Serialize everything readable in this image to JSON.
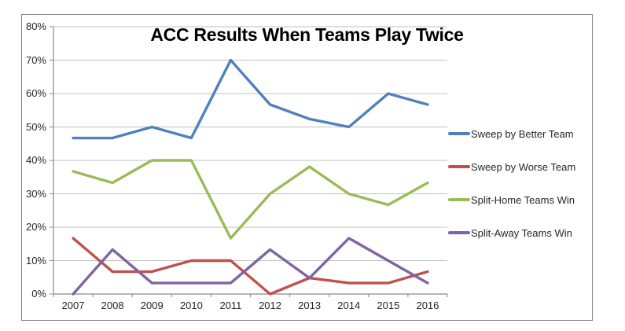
{
  "chart_data": {
    "type": "line",
    "title": "ACC Results When Teams Play Twice",
    "categories": [
      "2007",
      "2008",
      "2009",
      "2010",
      "2011",
      "2012",
      "2013",
      "2014",
      "2015",
      "2016"
    ],
    "series": [
      {
        "name": "Sweep by Better Team",
        "color": "#4F81BD",
        "values": [
          46.7,
          46.7,
          50.0,
          46.7,
          70.0,
          56.7,
          52.4,
          50.0,
          60.0,
          56.7
        ]
      },
      {
        "name": "Sweep by Worse Team",
        "color": "#C0504D",
        "values": [
          16.7,
          6.7,
          6.7,
          10.0,
          10.0,
          0.0,
          4.8,
          3.3,
          3.3,
          6.7
        ]
      },
      {
        "name": "Split-Home Teams Win",
        "color": "#9BBB59",
        "values": [
          36.7,
          33.3,
          40.0,
          40.0,
          16.7,
          30.0,
          38.1,
          30.0,
          26.7,
          33.3
        ]
      },
      {
        "name": "Split-Away Teams Win",
        "color": "#8064A2",
        "values": [
          0.0,
          13.3,
          3.3,
          3.3,
          3.3,
          13.3,
          4.8,
          16.7,
          10.0,
          3.3
        ]
      }
    ],
    "ylim": [
      0,
      80
    ],
    "ytick_labels": [
      "0%",
      "10%",
      "20%",
      "30%",
      "40%",
      "50%",
      "60%",
      "70%",
      "80%"
    ],
    "xlabel": "",
    "ylabel": "",
    "grid": true,
    "legend_position": "right",
    "colors": {
      "gridline": "#C0C0C0",
      "axis": "#898989",
      "frame_border": "#848484",
      "tick_text": "#262626",
      "title_text": "#000000"
    }
  }
}
